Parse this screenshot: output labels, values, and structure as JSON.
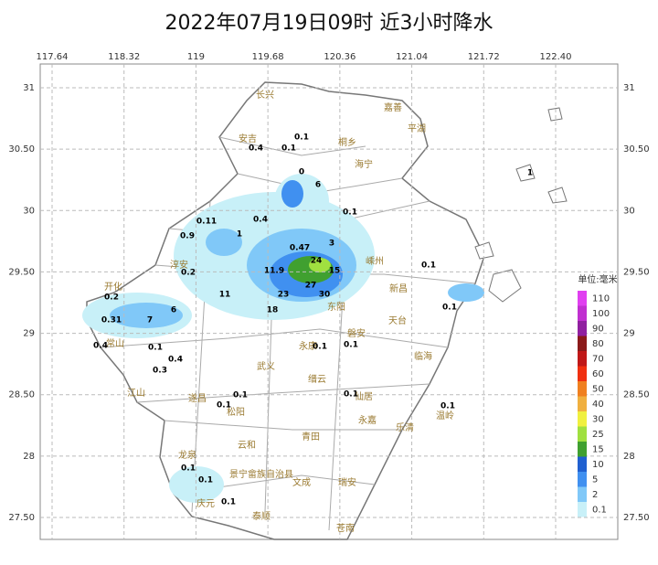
{
  "title": "2022年07月19日09时  近3小时降水",
  "lon_ticks": [
    117.64,
    118.32,
    119,
    119.68,
    120.36,
    121.04,
    121.72,
    {
      "value": 122.4,
      "label": "122.40"
    }
  ],
  "lat_ticks": [
    31,
    {
      "value": 30.5,
      "label": "30.50"
    },
    30,
    {
      "value": 29.5,
      "label": "29.50"
    },
    29,
    {
      "value": 28.5,
      "label": "28.50"
    },
    28,
    {
      "value": 27.5,
      "label": "27.50"
    }
  ],
  "legend": {
    "title": "单位:毫米",
    "levels": [
      {
        "value": 110,
        "color": "#e040f0"
      },
      {
        "value": 100,
        "color": "#c030d0"
      },
      {
        "value": 90,
        "color": "#9020a0"
      },
      {
        "value": 80,
        "color": "#8b1a1a"
      },
      {
        "value": 70,
        "color": "#c01818"
      },
      {
        "value": 60,
        "color": "#f03010"
      },
      {
        "value": 50,
        "color": "#f08020"
      },
      {
        "value": 40,
        "color": "#f0b040"
      },
      {
        "value": 30,
        "color": "#f0f040"
      },
      {
        "value": 25,
        "color": "#a0e040"
      },
      {
        "value": 15,
        "color": "#40a030"
      },
      {
        "value": 10,
        "color": "#2060d0"
      },
      {
        "value": 5,
        "color": "#4090f0"
      },
      {
        "value": 2,
        "color": "#80c8f8"
      },
      {
        "value": 0.1,
        "color": "#c8f0f8"
      }
    ]
  },
  "places": [
    "长兴",
    "安吉",
    "桐乡",
    "嘉善",
    "平湖",
    "海宁",
    "淳安",
    "开化",
    "常山",
    "江山",
    "遂昌",
    "松阳",
    "云和",
    "龙泉",
    "庆元",
    "景宁畲族自治县",
    "青田",
    "文成",
    "泰顺",
    "苍南",
    "瑞安",
    "永嘉",
    "乐清",
    "仙居",
    "临海",
    "天台",
    "新昌",
    "嵊州",
    "东阳",
    "永康",
    "磐安",
    "缙云",
    "武义",
    "温岭"
  ],
  "stations": [
    0.1,
    0.4,
    0.1,
    0,
    6,
    0.1,
    0.11,
    0.4,
    0.9,
    1,
    0.47,
    3,
    24,
    15,
    11.9,
    27,
    30,
    23,
    18,
    11,
    0.2,
    0.2,
    0.31,
    6,
    7,
    0.1,
    0.4,
    0.3,
    0.4,
    0.1,
    0.1,
    0.1,
    0.1,
    0.1,
    0.1,
    0.1,
    0.1,
    0.1,
    0.1,
    0.1,
    1
  ]
}
